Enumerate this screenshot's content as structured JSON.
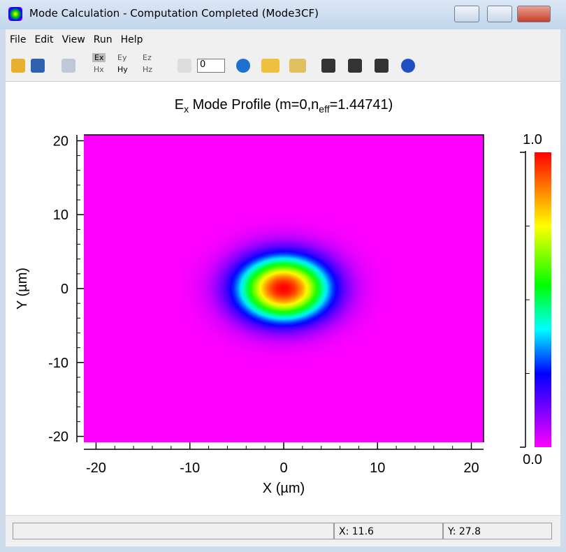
{
  "window": {
    "title": "Mode Calculation - Computation Completed (Mode3CF)"
  },
  "menu": [
    "File",
    "Edit",
    "View",
    "Run",
    "Help"
  ],
  "toolbar": {
    "field_top": [
      "Ex",
      "Ey",
      "Ez"
    ],
    "field_bottom": [
      "Hx",
      "Hy",
      "Hz"
    ],
    "mode_index": "0"
  },
  "chart_data": {
    "type": "heatmap",
    "title": [
      "E",
      "x",
      " Mode Profile (m=0,n",
      "eff",
      "=1.44741)"
    ],
    "x_label": "X (µm)",
    "y_label": "Y (µm)",
    "xlim": [
      -21.3,
      21.3
    ],
    "ylim": [
      -20.8,
      20.8
    ],
    "xticks": [
      -20,
      -10,
      0,
      10,
      20
    ],
    "yticks": [
      -20,
      -10,
      0,
      10,
      20
    ],
    "xminor_step": 2,
    "yminor_step": 2,
    "field": {
      "center_x": 0,
      "center_y": 0,
      "width_x": 4.7,
      "width_y": 4.2
    },
    "colorscale": [
      [
        0,
        "#ff00ff"
      ],
      [
        0.12,
        "#8000ff"
      ],
      [
        0.25,
        "#0000ff"
      ],
      [
        0.4,
        "#00ffff"
      ],
      [
        0.55,
        "#00ff00"
      ],
      [
        0.75,
        "#ffff00"
      ],
      [
        1,
        "#ff0000"
      ]
    ],
    "colorbar_lim": [
      0,
      1
    ],
    "colorbar_ticks": [
      {
        "value": 0,
        "label": "0.0"
      },
      {
        "value": 1,
        "label": "1.0"
      }
    ],
    "colorbar_minor_ticks": [
      0.25,
      0.5,
      0.75
    ]
  },
  "status_bar": {
    "x": "X: 11.6",
    "y": "Y: 27.8"
  }
}
